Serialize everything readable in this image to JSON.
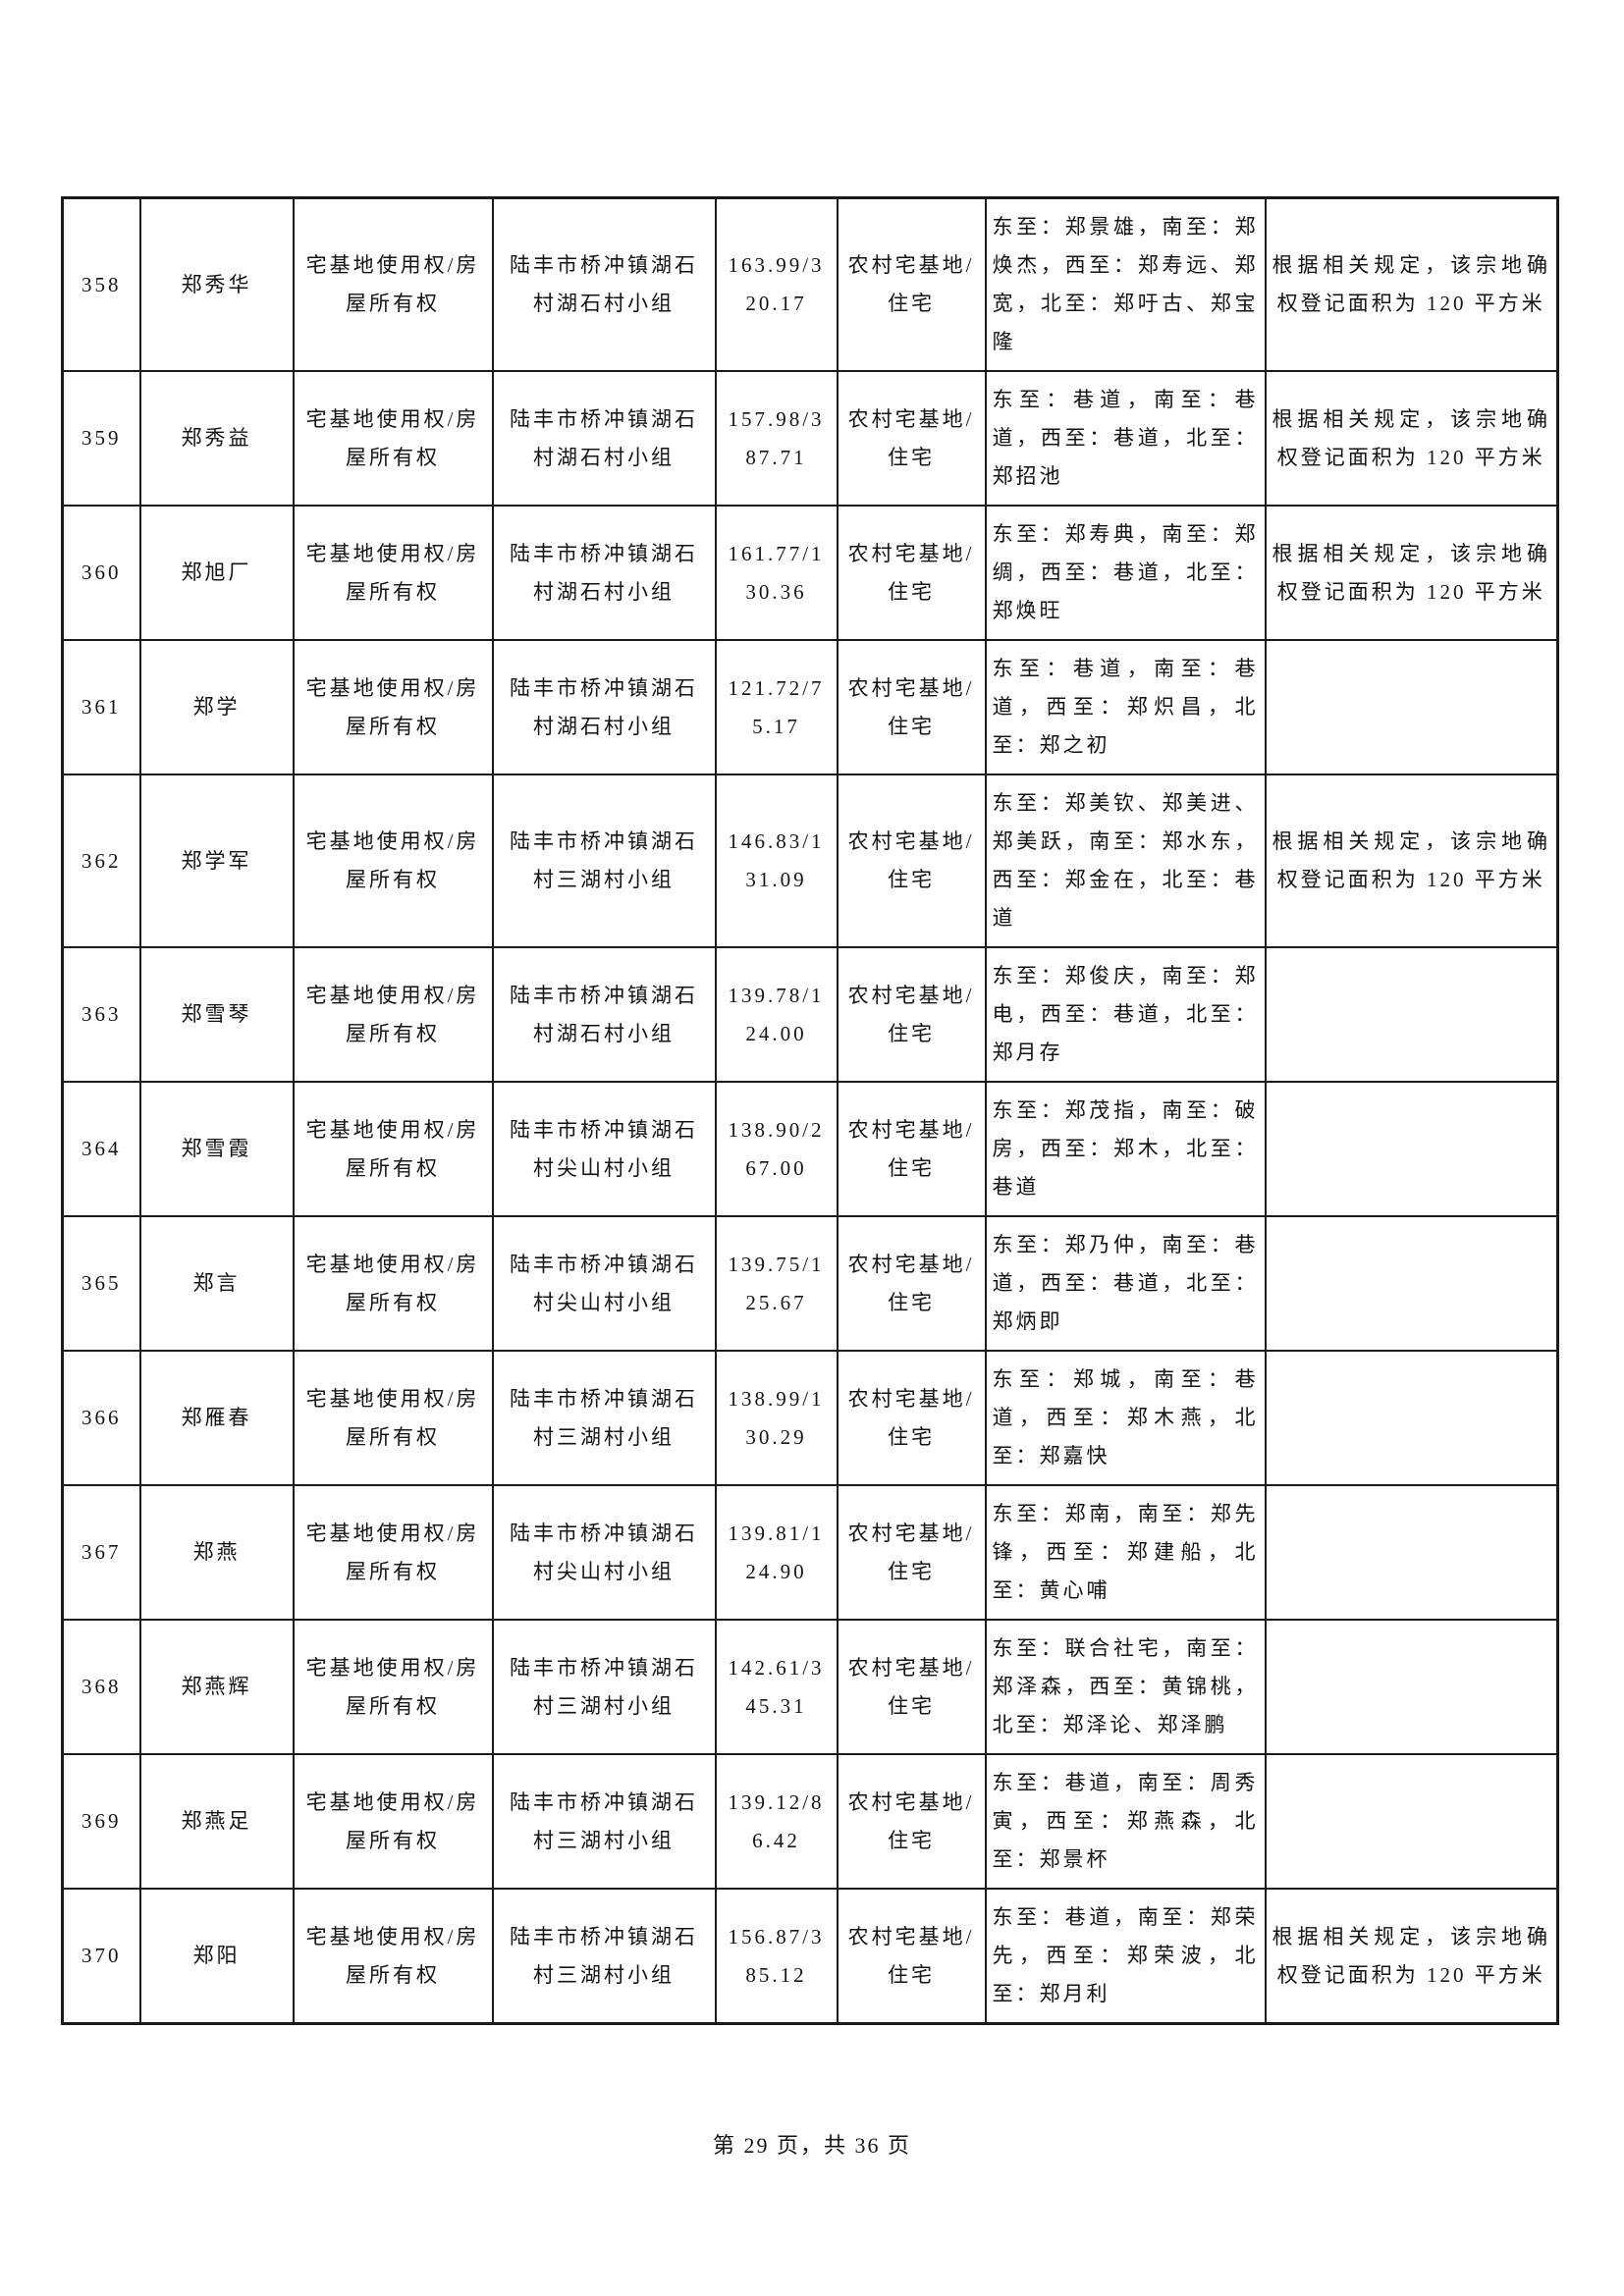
{
  "page": {
    "footer": "第 29 页，共 36 页"
  },
  "table": {
    "rows": [
      {
        "seq": "358",
        "name": "郑秀华",
        "right_type": "宅基地使用权/房屋所有权",
        "location": "陆丰市桥冲镇湖石村湖石村小组",
        "area": "163.99/320.17",
        "land_use": "农村宅基地/住宅",
        "boundary": "东至：郑景雄，南至：郑焕杰，西至：郑寿远、郑宽，北至：郑吁古、郑宝隆",
        "remark": "根据相关规定，该宗地确权登记面积为 120 平方米"
      },
      {
        "seq": "359",
        "name": "郑秀益",
        "right_type": "宅基地使用权/房屋所有权",
        "location": "陆丰市桥冲镇湖石村湖石村小组",
        "area": "157.98/387.71",
        "land_use": "农村宅基地/住宅",
        "boundary": "东至：巷道，南至：巷道，西至：巷道，北至：郑招池",
        "remark": "根据相关规定，该宗地确权登记面积为 120 平方米"
      },
      {
        "seq": "360",
        "name": "郑旭厂",
        "right_type": "宅基地使用权/房屋所有权",
        "location": "陆丰市桥冲镇湖石村湖石村小组",
        "area": "161.77/130.36",
        "land_use": "农村宅基地/住宅",
        "boundary": "东至：郑寿典，南至：郑绸，西至：巷道，北至：郑焕旺",
        "remark": "根据相关规定，该宗地确权登记面积为 120 平方米"
      },
      {
        "seq": "361",
        "name": "郑学",
        "right_type": "宅基地使用权/房屋所有权",
        "location": "陆丰市桥冲镇湖石村湖石村小组",
        "area": "121.72/75.17",
        "land_use": "农村宅基地/住宅",
        "boundary": "东至：巷道，南至：巷道，西至：郑炽昌，北至：郑之初",
        "remark": ""
      },
      {
        "seq": "362",
        "name": "郑学军",
        "right_type": "宅基地使用权/房屋所有权",
        "location": "陆丰市桥冲镇湖石村三湖村小组",
        "area": "146.83/131.09",
        "land_use": "农村宅基地/住宅",
        "boundary": "东至：郑美钦、郑美进、郑美跃，南至：郑水东，西至：郑金在，北至：巷道",
        "remark": "根据相关规定，该宗地确权登记面积为 120 平方米"
      },
      {
        "seq": "363",
        "name": "郑雪琴",
        "right_type": "宅基地使用权/房屋所有权",
        "location": "陆丰市桥冲镇湖石村湖石村小组",
        "area": "139.78/124.00",
        "land_use": "农村宅基地/住宅",
        "boundary": "东至：郑俊庆，南至：郑电，西至：巷道，北至：郑月存",
        "remark": ""
      },
      {
        "seq": "364",
        "name": "郑雪霞",
        "right_type": "宅基地使用权/房屋所有权",
        "location": "陆丰市桥冲镇湖石村尖山村小组",
        "area": "138.90/267.00",
        "land_use": "农村宅基地/住宅",
        "boundary": "东至：郑茂指，南至：破房，西至：郑木，北至：巷道",
        "remark": ""
      },
      {
        "seq": "365",
        "name": "郑言",
        "right_type": "宅基地使用权/房屋所有权",
        "location": "陆丰市桥冲镇湖石村尖山村小组",
        "area": "139.75/125.67",
        "land_use": "农村宅基地/住宅",
        "boundary": "东至：郑乃仲，南至：巷道，西至：巷道，北至：郑炳即",
        "remark": ""
      },
      {
        "seq": "366",
        "name": "郑雁春",
        "right_type": "宅基地使用权/房屋所有权",
        "location": "陆丰市桥冲镇湖石村三湖村小组",
        "area": "138.99/130.29",
        "land_use": "农村宅基地/住宅",
        "boundary": "东至：郑城，南至：巷道，西至：郑木燕，北至：郑嘉快",
        "remark": ""
      },
      {
        "seq": "367",
        "name": "郑燕",
        "right_type": "宅基地使用权/房屋所有权",
        "location": "陆丰市桥冲镇湖石村尖山村小组",
        "area": "139.81/124.90",
        "land_use": "农村宅基地/住宅",
        "boundary": "东至：郑南，南至：郑先锋，西至：郑建船，北至：黄心哺",
        "remark": ""
      },
      {
        "seq": "368",
        "name": "郑燕辉",
        "right_type": "宅基地使用权/房屋所有权",
        "location": "陆丰市桥冲镇湖石村三湖村小组",
        "area": "142.61/345.31",
        "land_use": "农村宅基地/住宅",
        "boundary": "东至：联合社宅，南至：郑泽森，西至：黄锦桃，北至：郑泽论、郑泽鹏",
        "remark": ""
      },
      {
        "seq": "369",
        "name": "郑燕足",
        "right_type": "宅基地使用权/房屋所有权",
        "location": "陆丰市桥冲镇湖石村三湖村小组",
        "area": "139.12/86.42",
        "land_use": "农村宅基地/住宅",
        "boundary": "东至：巷道，南至：周秀寅，西至：郑燕森，北至：郑景杯",
        "remark": ""
      },
      {
        "seq": "370",
        "name": "郑阳",
        "right_type": "宅基地使用权/房屋所有权",
        "location": "陆丰市桥冲镇湖石村三湖村小组",
        "area": "156.87/385.12",
        "land_use": "农村宅基地/住宅",
        "boundary": "东至：巷道，南至：郑荣先，西至：郑荣波，北至：郑月利",
        "remark": "根据相关规定，该宗地确权登记面积为 120 平方米"
      }
    ]
  }
}
